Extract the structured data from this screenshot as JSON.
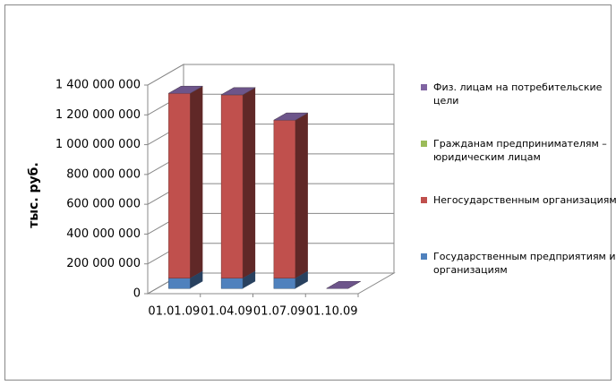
{
  "chart_data": {
    "type": "bar3d_stacked",
    "y_label": "тыс. руб.",
    "categories": [
      "01.01.09",
      "01.04.09",
      "01.07.09",
      "01.10.09"
    ],
    "series": [
      {
        "name": "Государственным предприятиям и организациям",
        "color": "#4f81bd",
        "values": [
          70000000,
          70000000,
          70000000,
          0
        ]
      },
      {
        "name": "Негосударственным организациям",
        "color": "#c0504d",
        "values": [
          1240000000,
          1230000000,
          1060000000,
          0
        ]
      },
      {
        "name": "Гражданам предпринимателям – юридическим лицам",
        "color": "#9bbb59",
        "values": [
          0,
          0,
          0,
          0
        ]
      },
      {
        "name": "Физ. лицам на потребительские цели",
        "color": "#8064a2",
        "values": [
          0,
          0,
          0,
          0
        ]
      }
    ],
    "ylim": [
      0,
      1400000000
    ],
    "yticks": [
      0,
      {
        "value": 200000000,
        "label": "200 000 000"
      },
      {
        "value": 400000000,
        "label": "400 000 000"
      },
      {
        "value": 600000000,
        "label": "600 000 000"
      },
      {
        "value": 800000000,
        "label": "800 000 000"
      },
      {
        "value": 1000000000,
        "label": "1 000 000 000"
      },
      {
        "value": 1200000000,
        "label": "1 200 000 000"
      },
      {
        "value": 1400000000,
        "label": "1 400 000 000"
      }
    ],
    "grid": true
  }
}
